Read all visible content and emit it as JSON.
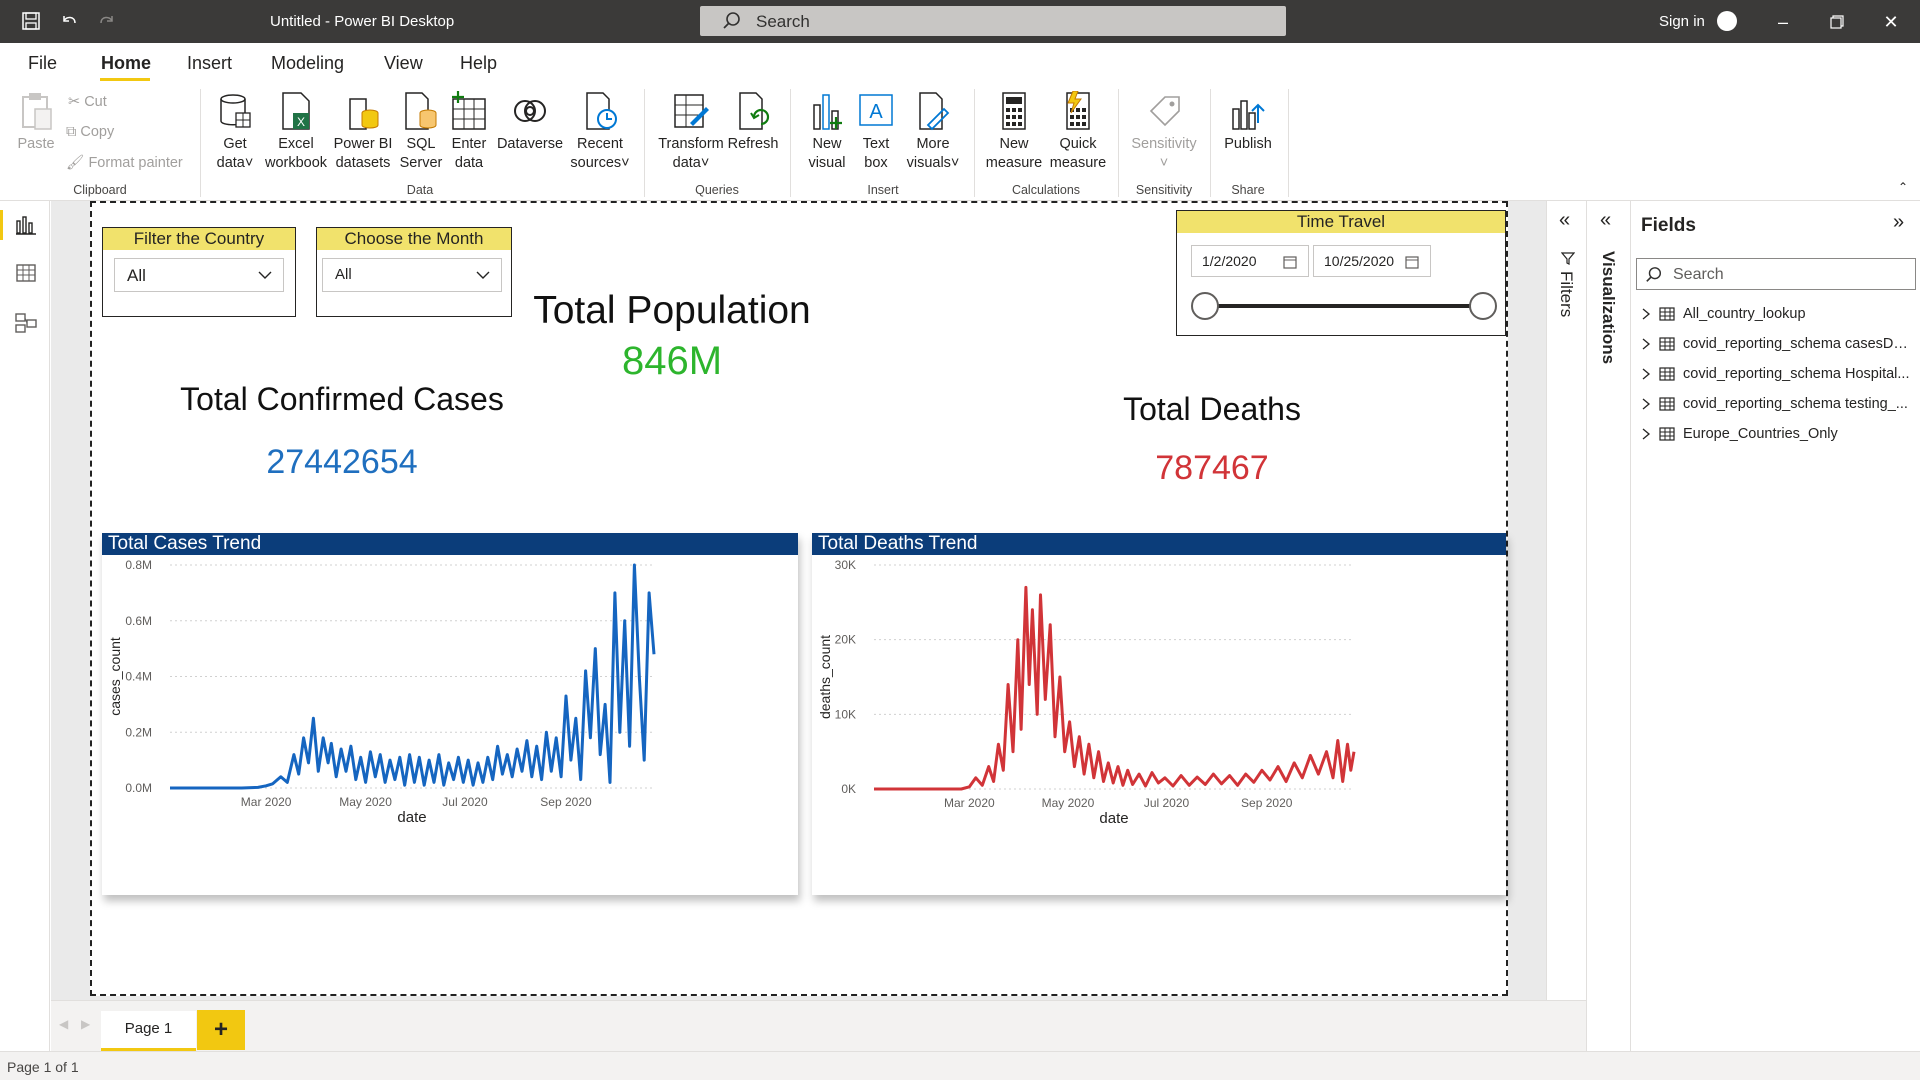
{
  "window": {
    "title": "Untitled - Power BI Desktop",
    "search_placeholder": "Search",
    "sign_in": "Sign in"
  },
  "menu": {
    "tabs": [
      "File",
      "Home",
      "Insert",
      "Modeling",
      "View",
      "Help"
    ],
    "active": "Home"
  },
  "ribbon": {
    "clipboard": {
      "paste": "Paste",
      "cut": "Cut",
      "copy": "Copy",
      "format_painter": "Format painter",
      "group": "Clipboard"
    },
    "data": {
      "get_data": [
        "Get",
        "data"
      ],
      "excel": [
        "Excel",
        "workbook"
      ],
      "pbi_datasets": [
        "Power BI",
        "datasets"
      ],
      "sql": [
        "SQL",
        "Server"
      ],
      "enter_data": [
        "Enter",
        "data"
      ],
      "dataverse": "Dataverse",
      "recent": [
        "Recent",
        "sources"
      ],
      "group": "Data"
    },
    "queries": {
      "transform": [
        "Transform",
        "data"
      ],
      "refresh": "Refresh",
      "group": "Queries"
    },
    "insert": {
      "new_visual": [
        "New",
        "visual"
      ],
      "text_box": [
        "Text",
        "box"
      ],
      "more_visuals": [
        "More",
        "visuals"
      ],
      "group": "Insert"
    },
    "calculations": {
      "new_measure": [
        "New",
        "measure"
      ],
      "quick_measure": [
        "Quick",
        "measure"
      ],
      "group": "Calculations"
    },
    "sensitivity": {
      "label": "Sensitivity",
      "group": "Sensitivity"
    },
    "share": {
      "publish": "Publish",
      "group": "Share"
    }
  },
  "report": {
    "filter_country": {
      "title": "Filter the Country",
      "value": "All"
    },
    "choose_month": {
      "title": "Choose the Month",
      "value": "All"
    },
    "time_travel": {
      "title": "Time Travel",
      "start": "1/2/2020",
      "end": "10/25/2020",
      "range_fraction": [
        0.0,
        1.0
      ]
    },
    "population": {
      "title": "Total Population",
      "value": "846M",
      "color": "#2db52d"
    },
    "confirmed": {
      "title": "Total Confirmed Cases",
      "value": "27442654",
      "color": "#1f6fbf"
    },
    "deaths": {
      "title": "Total Deaths",
      "value": "787467",
      "color": "#d13438"
    }
  },
  "chart_data": [
    {
      "type": "line",
      "title": "Total Cases Trend",
      "xlabel": "date",
      "ylabel": "cases_count",
      "x_ticks": [
        "Mar 2020",
        "May 2020",
        "Jul 2020",
        "Sep 2020"
      ],
      "y_ticks": [
        "0.0M",
        "0.2M",
        "0.4M",
        "0.6M",
        "0.8M"
      ],
      "ylim": [
        0,
        800000
      ],
      "xlim": [
        "2020-01-02",
        "2020-10-25"
      ],
      "grid": true,
      "color": "#1565c0",
      "series": [
        {
          "x": [
            "2020-01-02",
            "2020-02-15",
            "2020-02-25",
            "2020-03-01",
            "2020-03-05",
            "2020-03-10",
            "2020-03-14",
            "2020-03-18",
            "2020-03-21",
            "2020-03-24",
            "2020-03-27",
            "2020-03-30",
            "2020-04-02",
            "2020-04-05",
            "2020-04-08",
            "2020-04-10",
            "2020-04-13",
            "2020-04-16",
            "2020-04-19",
            "2020-04-22",
            "2020-04-25",
            "2020-04-28",
            "2020-05-01",
            "2020-05-04",
            "2020-05-07",
            "2020-05-10",
            "2020-05-13",
            "2020-05-16",
            "2020-05-19",
            "2020-05-22",
            "2020-05-25",
            "2020-05-28",
            "2020-05-31",
            "2020-06-03",
            "2020-06-06",
            "2020-06-09",
            "2020-06-12",
            "2020-06-15",
            "2020-06-18",
            "2020-06-21",
            "2020-06-24",
            "2020-06-27",
            "2020-06-30",
            "2020-07-03",
            "2020-07-06",
            "2020-07-09",
            "2020-07-12",
            "2020-07-15",
            "2020-07-18",
            "2020-07-21",
            "2020-07-24",
            "2020-07-27",
            "2020-07-30",
            "2020-08-02",
            "2020-08-05",
            "2020-08-08",
            "2020-08-11",
            "2020-08-14",
            "2020-08-17",
            "2020-08-20",
            "2020-08-23",
            "2020-08-26",
            "2020-08-29",
            "2020-09-01",
            "2020-09-04",
            "2020-09-07",
            "2020-09-10",
            "2020-09-13",
            "2020-09-16",
            "2020-09-19",
            "2020-09-22",
            "2020-09-25",
            "2020-09-28",
            "2020-10-01",
            "2020-10-04",
            "2020-10-07",
            "2020-10-10",
            "2020-10-13",
            "2020-10-16",
            "2020-10-19",
            "2020-10-22",
            "2020-10-25"
          ],
          "y": [
            0,
            0,
            2000,
            8000,
            15000,
            40000,
            20000,
            120000,
            50000,
            180000,
            90000,
            250000,
            60000,
            180000,
            90000,
            160000,
            40000,
            140000,
            60000,
            150000,
            30000,
            110000,
            20000,
            130000,
            40000,
            120000,
            20000,
            100000,
            30000,
            110000,
            10000,
            120000,
            20000,
            110000,
            10000,
            100000,
            20000,
            120000,
            10000,
            90000,
            30000,
            110000,
            20000,
            100000,
            10000,
            90000,
            20000,
            110000,
            30000,
            150000,
            50000,
            120000,
            40000,
            140000,
            60000,
            170000,
            40000,
            150000,
            30000,
            200000,
            60000,
            180000,
            40000,
            330000,
            100000,
            250000,
            30000,
            420000,
            180000,
            500000,
            120000,
            300000,
            20000,
            700000,
            200000,
            600000,
            150000,
            800000,
            400000,
            100000,
            700000,
            480000
          ]
        }
      ]
    },
    {
      "type": "line",
      "title": "Total Deaths Trend",
      "xlabel": "date",
      "ylabel": "deaths_count",
      "x_ticks": [
        "Mar 2020",
        "May 2020",
        "Jul 2020",
        "Sep 2020"
      ],
      "y_ticks": [
        "0K",
        "10K",
        "20K",
        "30K"
      ],
      "ylim": [
        0,
        30000
      ],
      "xlim": [
        "2020-01-02",
        "2020-10-25"
      ],
      "grid": true,
      "color": "#d13438",
      "series": [
        {
          "x": [
            "2020-01-02",
            "2020-02-25",
            "2020-03-01",
            "2020-03-05",
            "2020-03-09",
            "2020-03-13",
            "2020-03-16",
            "2020-03-19",
            "2020-03-22",
            "2020-03-25",
            "2020-03-28",
            "2020-03-31",
            "2020-04-02",
            "2020-04-05",
            "2020-04-07",
            "2020-04-09",
            "2020-04-12",
            "2020-04-14",
            "2020-04-17",
            "2020-04-20",
            "2020-04-23",
            "2020-04-26",
            "2020-04-29",
            "2020-05-02",
            "2020-05-05",
            "2020-05-08",
            "2020-05-11",
            "2020-05-14",
            "2020-05-17",
            "2020-05-20",
            "2020-05-23",
            "2020-05-26",
            "2020-05-29",
            "2020-06-01",
            "2020-06-04",
            "2020-06-07",
            "2020-06-10",
            "2020-06-14",
            "2020-06-18",
            "2020-06-22",
            "2020-06-26",
            "2020-06-30",
            "2020-07-05",
            "2020-07-10",
            "2020-07-15",
            "2020-07-20",
            "2020-07-25",
            "2020-07-30",
            "2020-08-04",
            "2020-08-09",
            "2020-08-14",
            "2020-08-19",
            "2020-08-24",
            "2020-08-29",
            "2020-09-03",
            "2020-09-08",
            "2020-09-13",
            "2020-09-18",
            "2020-09-23",
            "2020-09-28",
            "2020-10-03",
            "2020-10-08",
            "2020-10-12",
            "2020-10-15",
            "2020-10-18",
            "2020-10-21",
            "2020-10-23",
            "2020-10-25"
          ],
          "y": [
            0,
            0,
            300,
            1500,
            500,
            3000,
            1000,
            6000,
            2500,
            14000,
            5000,
            20000,
            8000,
            27000,
            14000,
            24000,
            10000,
            26000,
            12000,
            22000,
            7000,
            15000,
            5000,
            9000,
            3000,
            7000,
            2000,
            6000,
            1500,
            5000,
            1000,
            3500,
            800,
            3000,
            500,
            2500,
            600,
            2000,
            400,
            2200,
            800,
            1500,
            400,
            1800,
            500,
            1600,
            600,
            2000,
            700,
            1800,
            500,
            2000,
            900,
            2500,
            1200,
            3000,
            1000,
            3500,
            1500,
            4500,
            2000,
            5000,
            1500,
            6500,
            1000,
            6000,
            2500,
            5000
          ]
        }
      ]
    }
  ],
  "panes": {
    "filters_label": "Filters",
    "visualizations_label": "Visualizations",
    "fields": {
      "title": "Fields",
      "search_placeholder": "Search",
      "items": [
        "All_country_lookup",
        "covid_reporting_schema casesDe...",
        "covid_reporting_schema Hospital...",
        "covid_reporting_schema testing_...",
        "Europe_Countries_Only"
      ]
    }
  },
  "pages": {
    "tab": "Page 1",
    "add": "+",
    "status": "Page 1 of 1"
  }
}
